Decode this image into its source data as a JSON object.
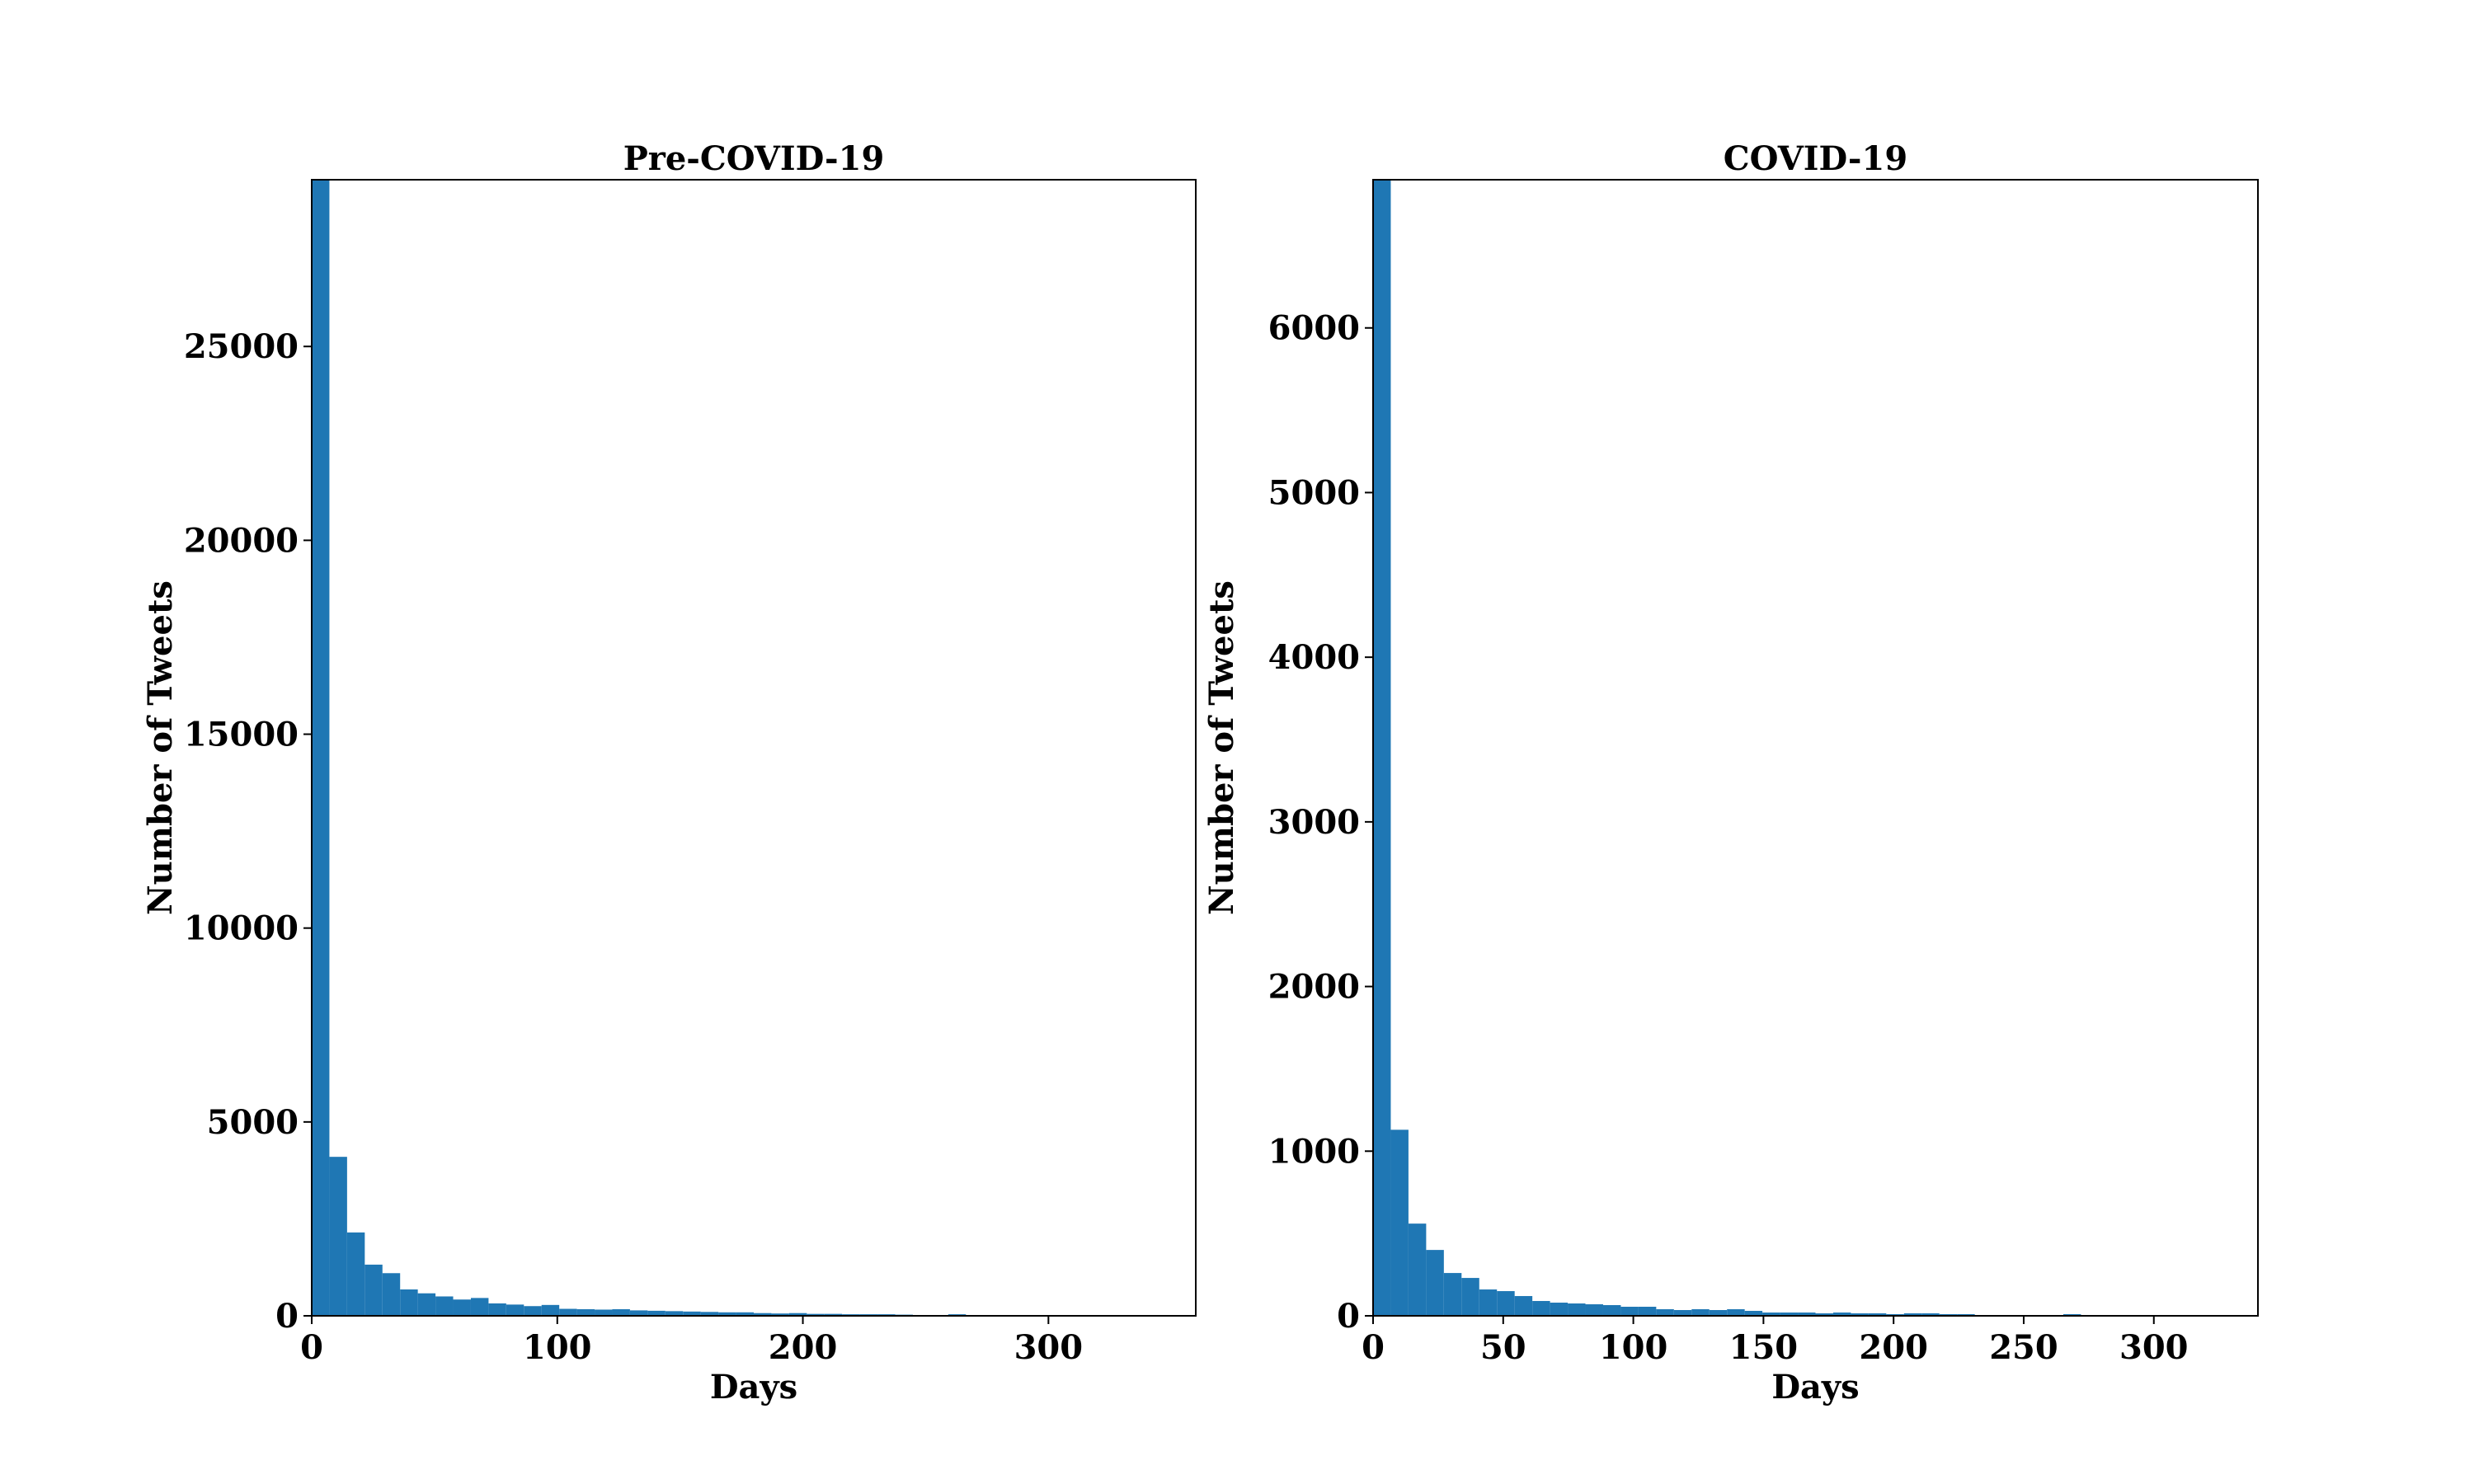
{
  "chart_data": [
    {
      "type": "bar",
      "title": "Pre-COVID-19",
      "xlabel": "Days",
      "ylabel": "Number of Tweets",
      "xlim": [
        0,
        360
      ],
      "ylim": [
        0,
        29300
      ],
      "xticks": [
        0,
        100,
        200,
        300
      ],
      "yticks": [
        0,
        5000,
        10000,
        15000,
        20000,
        25000
      ],
      "grid": false,
      "color": "#1f77b4",
      "bin_width": 7.2,
      "bins_start": [
        0,
        7.2,
        14.4,
        21.6,
        28.8,
        36,
        43.2,
        50.4,
        57.6,
        64.8,
        72,
        79.2,
        86.4,
        93.6,
        100.8,
        108,
        115.2,
        122.4,
        129.6,
        136.8,
        144,
        151.2,
        158.4,
        165.6,
        172.8,
        180,
        187.2,
        194.4,
        201.6,
        208.8,
        216,
        223.2,
        230.4,
        237.6,
        244.8,
        252,
        259.2,
        266.4,
        273.6,
        280.8,
        288,
        295.2,
        302.4,
        309.6,
        316.8,
        324,
        331.2,
        338.4
      ],
      "values": [
        29300,
        4100,
        2150,
        1320,
        1100,
        680,
        580,
        500,
        420,
        460,
        320,
        290,
        250,
        280,
        180,
        170,
        160,
        170,
        140,
        130,
        120,
        110,
        100,
        90,
        90,
        70,
        60,
        70,
        50,
        50,
        40,
        40,
        40,
        30,
        20,
        20,
        40,
        20,
        10,
        10,
        10,
        10,
        5,
        5,
        5,
        5,
        5,
        5
      ]
    },
    {
      "type": "bar",
      "title": "COVID-19",
      "xlabel": "Days",
      "ylabel": "Number of Tweets",
      "xlim": [
        0,
        340
      ],
      "ylim": [
        0,
        6900
      ],
      "xticks": [
        0,
        50,
        100,
        150,
        200,
        250,
        300
      ],
      "yticks": [
        0,
        1000,
        2000,
        3000,
        4000,
        5000,
        6000
      ],
      "grid": false,
      "color": "#1f77b4",
      "bin_width": 6.8,
      "bins_start": [
        0,
        6.8,
        13.6,
        20.4,
        27.2,
        34,
        40.8,
        47.6,
        54.4,
        61.2,
        68,
        74.8,
        81.6,
        88.4,
        95.2,
        102,
        108.8,
        115.6,
        122.4,
        129.2,
        136,
        142.8,
        149.6,
        156.4,
        163.2,
        170,
        176.8,
        183.6,
        190.4,
        197.2,
        204,
        210.8,
        217.6,
        224.4,
        231.2,
        238,
        244.8,
        251.6,
        258.4,
        265.2,
        272,
        278.8,
        285.6,
        292.4,
        299.2,
        306,
        312.8,
        319.6
      ],
      "values": [
        6900,
        1130,
        560,
        400,
        260,
        230,
        160,
        150,
        120,
        90,
        80,
        75,
        70,
        65,
        55,
        55,
        40,
        35,
        40,
        35,
        40,
        30,
        20,
        20,
        20,
        15,
        20,
        15,
        15,
        10,
        15,
        15,
        10,
        10,
        5,
        5,
        5,
        5,
        5,
        10,
        5,
        5,
        5,
        5,
        5,
        5,
        5,
        5
      ]
    }
  ]
}
